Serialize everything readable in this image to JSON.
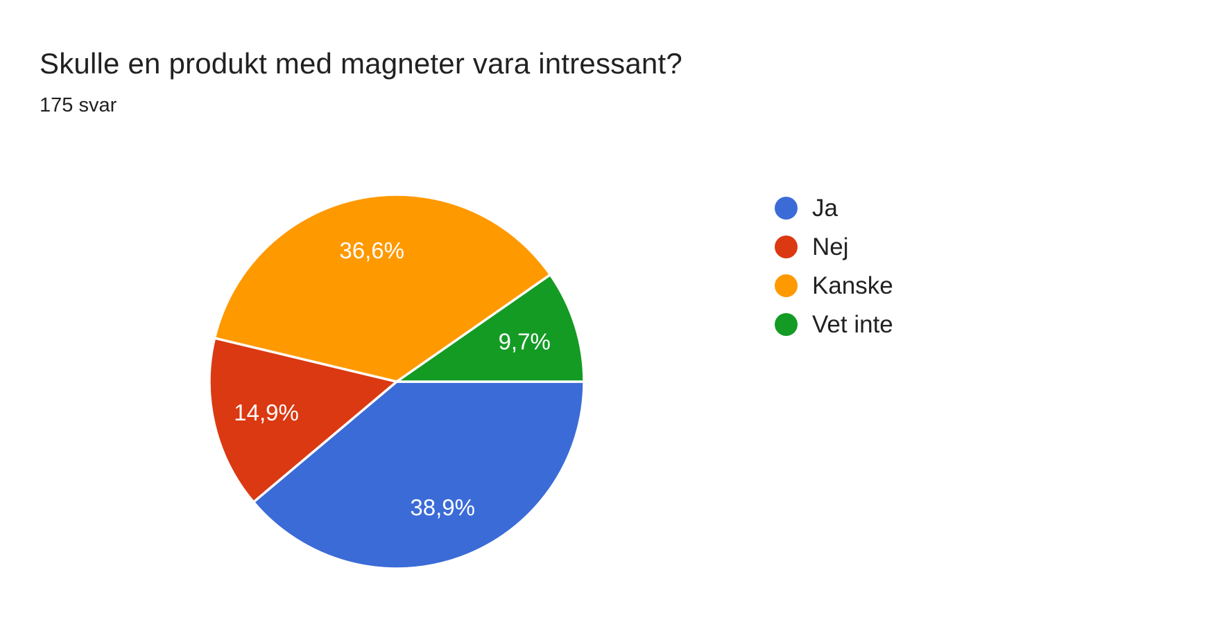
{
  "header": {
    "title": "Skulle en produkt med magneter vara intressant?",
    "responses": "175 svar"
  },
  "chart_data": {
    "type": "pie",
    "title": "Skulle en produkt med magneter vara intressant?",
    "subtitle": "175 svar",
    "categories": [
      "Ja",
      "Nej",
      "Kanske",
      "Vet inte"
    ],
    "values": [
      38.9,
      14.9,
      36.6,
      9.7
    ],
    "slice_labels": [
      "38,9%",
      "14,9%",
      "36,6%",
      "9,7%"
    ],
    "colors": [
      "#3B6BD6",
      "#DB3912",
      "#FF9900",
      "#149B24"
    ],
    "start_angle_deg": 0,
    "direction": "clockwise",
    "legend_position": "right",
    "slice_border_color": "#ffffff",
    "slice_label_color": "#ffffff",
    "slice_label_font_px": 33,
    "label_radius_factor": 0.715
  },
  "legend": {
    "items": [
      {
        "label": "Ja",
        "color": "#3B6BD6"
      },
      {
        "label": "Nej",
        "color": "#DB3912"
      },
      {
        "label": "Kanske",
        "color": "#FF9900"
      },
      {
        "label": "Vet inte",
        "color": "#149B24"
      }
    ]
  }
}
